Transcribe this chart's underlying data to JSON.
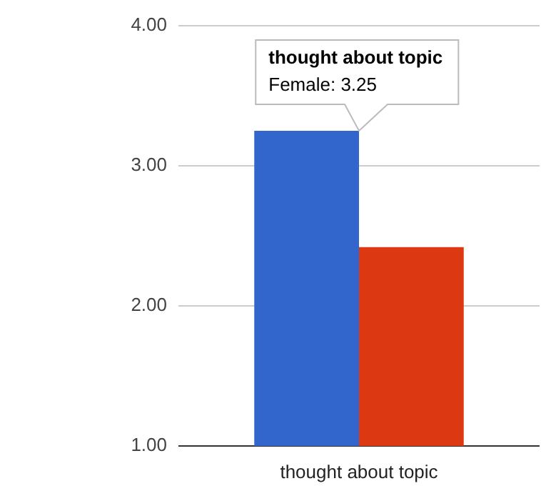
{
  "chart_data": {
    "type": "bar",
    "categories": [
      "thought about topic"
    ],
    "series": [
      {
        "color": "#3366cc",
        "values": [
          3.25
        ]
      },
      {
        "color": "#dc3912",
        "values": [
          2.42
        ]
      }
    ],
    "ylim": [
      1,
      4
    ],
    "yticks": [
      {
        "value": 1,
        "label": "1.00"
      },
      {
        "value": 2,
        "label": "2.00"
      },
      {
        "value": 3,
        "label": "3.00"
      },
      {
        "value": 4,
        "label": "4.00"
      }
    ],
    "annotations": [
      "thought about topic",
      "Female: 3.25"
    ],
    "grid": "y",
    "legend": false
  }
}
